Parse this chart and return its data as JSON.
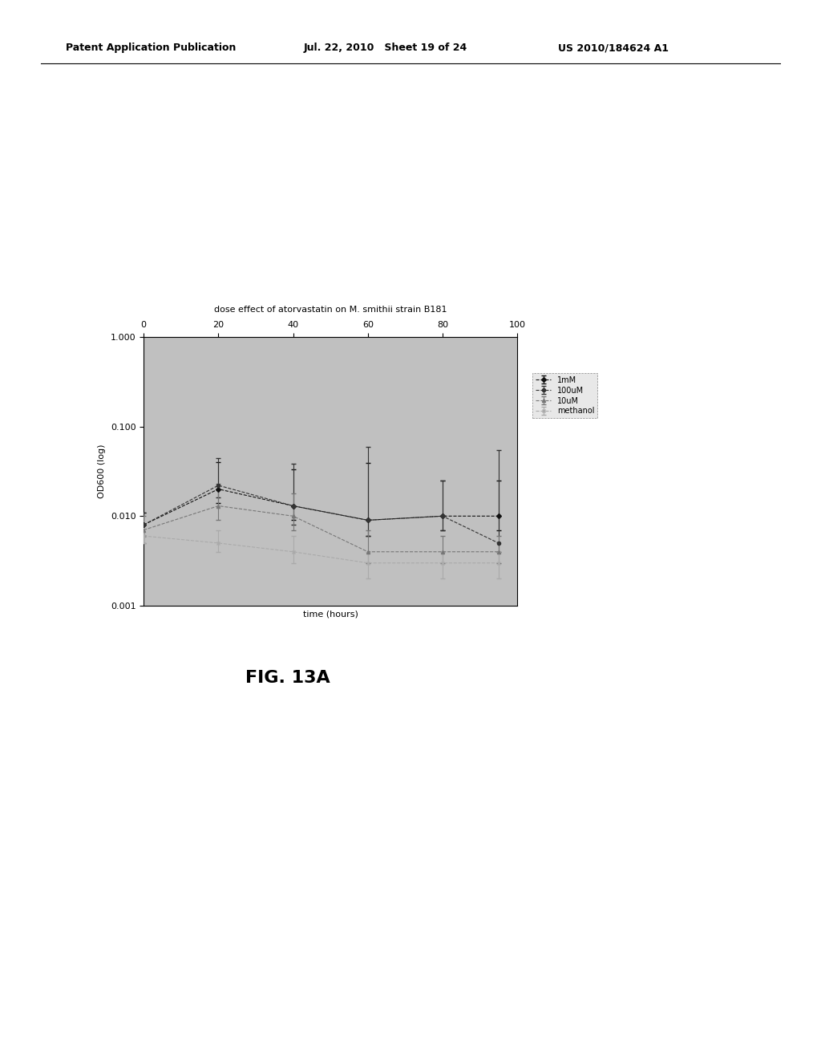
{
  "title": "dose effect of atorvastatin on M. smithii strain B181",
  "xlabel": "time (hours)",
  "ylabel": "OD600 (log)",
  "xlim": [
    0,
    100
  ],
  "ylim_log": [
    0.001,
    1.0
  ],
  "xticks": [
    0,
    20,
    40,
    60,
    80,
    100
  ],
  "bg_color": "#c0c0c0",
  "fig_color": "#ffffff",
  "series": {
    "1mM": {
      "x": [
        0,
        20,
        40,
        60,
        80,
        95
      ],
      "y": [
        0.008,
        0.02,
        0.013,
        0.009,
        0.01,
        0.01
      ],
      "yerr_lo": [
        0.002,
        0.006,
        0.004,
        0.003,
        0.003,
        0.003
      ],
      "yerr_hi": [
        0.003,
        0.02,
        0.02,
        0.03,
        0.015,
        0.015
      ],
      "color": "#111111",
      "marker": "D",
      "label": "1mM"
    },
    "100uM": {
      "x": [
        0,
        20,
        40,
        60,
        80,
        95
      ],
      "y": [
        0.008,
        0.022,
        0.013,
        0.009,
        0.01,
        0.005
      ],
      "yerr_lo": [
        0.002,
        0.006,
        0.005,
        0.003,
        0.003,
        0.001
      ],
      "yerr_hi": [
        0.003,
        0.022,
        0.025,
        0.05,
        0.015,
        0.05
      ],
      "color": "#333333",
      "marker": "o",
      "label": "100uM"
    },
    "10uM": {
      "x": [
        0,
        20,
        40,
        60,
        80,
        95
      ],
      "y": [
        0.007,
        0.013,
        0.01,
        0.004,
        0.004,
        0.004
      ],
      "yerr_lo": [
        0.002,
        0.004,
        0.003,
        0.001,
        0.001,
        0.001
      ],
      "yerr_hi": [
        0.003,
        0.01,
        0.008,
        0.003,
        0.002,
        0.002
      ],
      "color": "#777777",
      "marker": "^",
      "label": "10uM"
    },
    "methanol": {
      "x": [
        0,
        20,
        40,
        60,
        80,
        95
      ],
      "y": [
        0.006,
        0.005,
        0.004,
        0.003,
        0.003,
        0.003
      ],
      "yerr_lo": [
        0.001,
        0.001,
        0.001,
        0.001,
        0.001,
        0.001
      ],
      "yerr_hi": [
        0.002,
        0.002,
        0.002,
        0.001,
        0.001,
        0.001
      ],
      "color": "#aaaaaa",
      "marker": "x",
      "label": "methanol"
    }
  },
  "series_order": [
    "1mM",
    "100uM",
    "10uM",
    "methanol"
  ],
  "title_fontsize": 8,
  "axis_fontsize": 8,
  "tick_fontsize": 8,
  "header_left": "Patent Application Publication",
  "header_mid": "Jul. 22, 2010   Sheet 19 of 24",
  "header_right": "US 2010/184624 A1",
  "fig_label": "FIG. 13A"
}
